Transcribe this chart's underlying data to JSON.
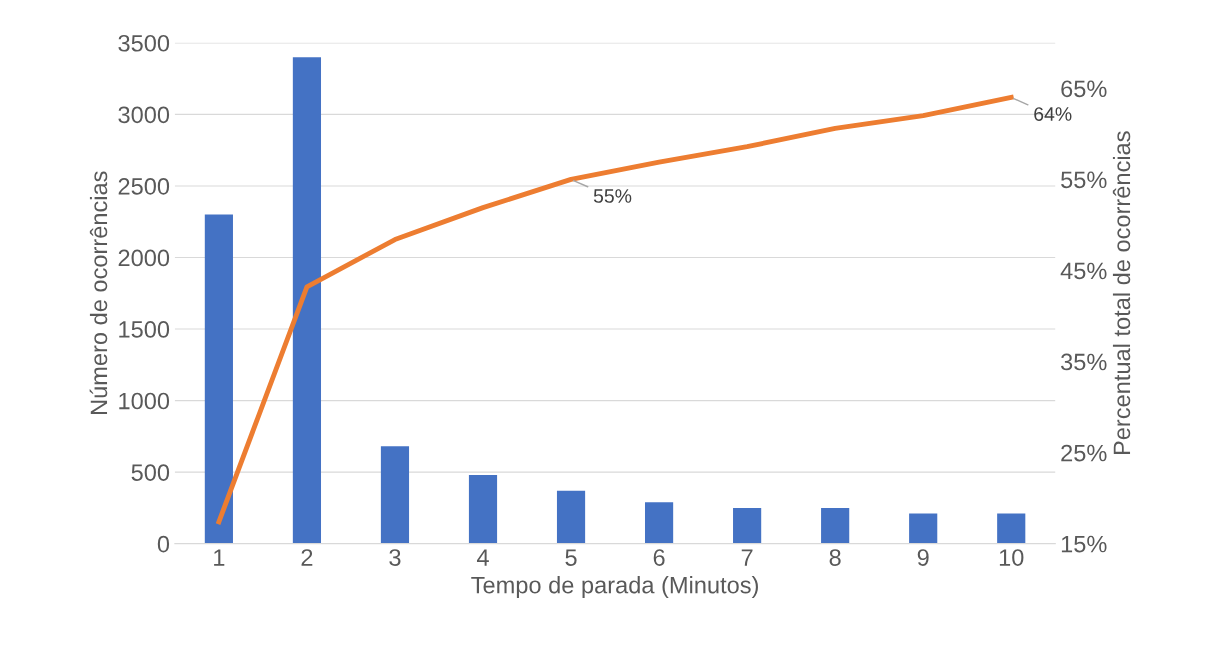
{
  "chart_data": {
    "type": "bar",
    "xlabel": "Tempo de parada (Minutos)",
    "ylabel": "Número de ocorrências",
    "y2label": "Percentual total de ocorrências",
    "categories": [
      "1",
      "2",
      "3",
      "4",
      "5",
      "6",
      "7",
      "8",
      "9",
      "10"
    ],
    "series": [
      {
        "color": "#4472c4",
        "values": [
          2300,
          3400,
          680,
          480,
          370,
          290,
          250,
          250,
          210,
          210
        ]
      },
      {
        "type": "line",
        "axis": "y2",
        "color": "#ed7d31",
        "values": [
          17.4,
          43.2,
          48.4,
          51.9,
          55,
          56.9,
          58.6,
          60.6,
          62.0,
          64
        ],
        "value_labels": [
          null,
          null,
          null,
          null,
          "55%",
          null,
          null,
          null,
          null,
          "64%"
        ]
      }
    ],
    "ylim": [
      0,
      3500
    ],
    "yticks": [
      0,
      500,
      1000,
      1500,
      2000,
      2500,
      3000,
      3500
    ],
    "y2lim": [
      15,
      70
    ],
    "y2ticks": [
      {
        "value": 15,
        "label": "15%"
      },
      {
        "value": 25,
        "label": "25%"
      },
      {
        "value": 35,
        "label": "35%"
      },
      {
        "value": 45,
        "label": "45%"
      },
      {
        "value": 55,
        "label": "55%"
      },
      {
        "value": 65,
        "label": "65%"
      }
    ],
    "grid": "y",
    "legend": false
  }
}
